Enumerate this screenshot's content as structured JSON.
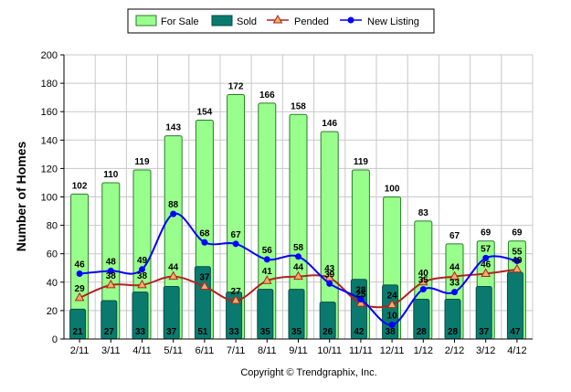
{
  "chart_data": {
    "type": "bar",
    "categories": [
      "2/11",
      "3/11",
      "4/11",
      "5/11",
      "6/11",
      "7/11",
      "8/11",
      "9/11",
      "10/11",
      "11/11",
      "12/11",
      "1/12",
      "2/12",
      "3/12",
      "4/12"
    ],
    "ylabel": "Number of Homes",
    "ylim": [
      0,
      200
    ],
    "yticks": [
      0,
      20,
      40,
      60,
      80,
      100,
      120,
      140,
      160,
      180,
      200
    ],
    "legend_position": "top",
    "series": [
      {
        "name": "For Sale",
        "kind": "bar",
        "color": "#99ff8c",
        "values": [
          102,
          110,
          119,
          143,
          154,
          172,
          166,
          158,
          146,
          119,
          100,
          83,
          67,
          69,
          69
        ]
      },
      {
        "name": "Sold",
        "kind": "bar",
        "color": "#0a7a6e",
        "values": [
          21,
          27,
          33,
          37,
          51,
          33,
          35,
          35,
          26,
          42,
          38,
          28,
          28,
          37,
          47
        ]
      },
      {
        "name": "Pended",
        "kind": "line",
        "color": "#b22222",
        "marker_color": "#e8b06a",
        "values": [
          29,
          38,
          38,
          44,
          37,
          27,
          41,
          44,
          43,
          25,
          24,
          40,
          44,
          46,
          49
        ]
      },
      {
        "name": "New Listing",
        "kind": "line",
        "color": "#0000ff",
        "values": [
          46,
          48,
          49,
          88,
          68,
          67,
          56,
          58,
          39,
          28,
          10,
          35,
          33,
          57,
          55
        ]
      }
    ]
  },
  "footer": {
    "copyright": "Copyright © Trendgraphix, Inc."
  }
}
